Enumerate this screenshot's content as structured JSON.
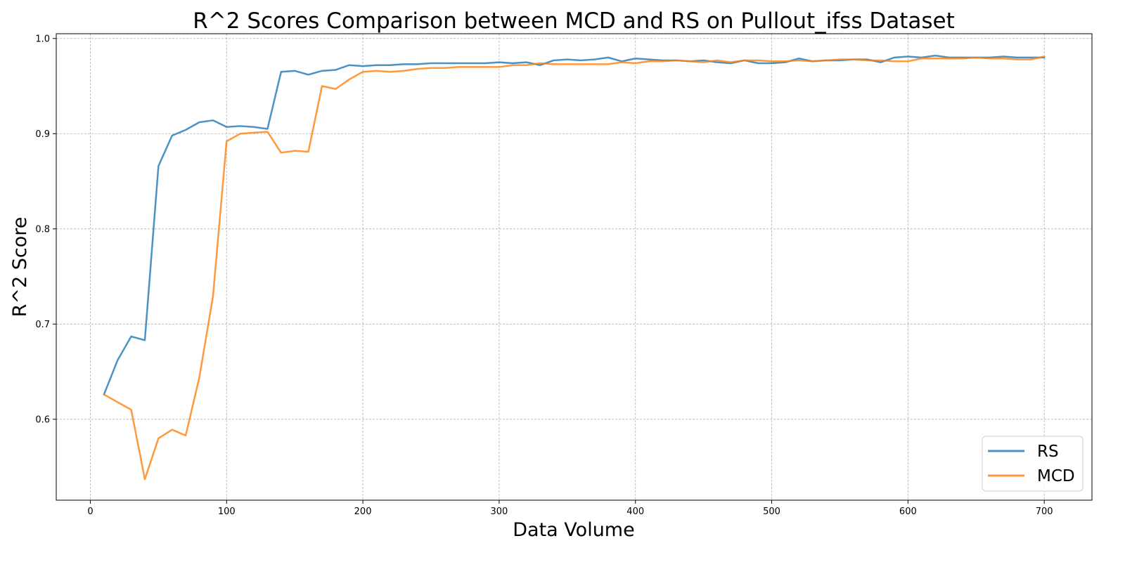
{
  "chart_data": {
    "type": "line",
    "title": "R^2 Scores Comparison between MCD and RS on Pullout_ifss Dataset",
    "xlabel": "Data Volume",
    "ylabel": "R^2 Score",
    "xlim": [
      -25,
      735
    ],
    "ylim": [
      0.515,
      1.005
    ],
    "xticks": [
      0,
      100,
      200,
      300,
      400,
      500,
      600,
      700
    ],
    "yticks": [
      0.6,
      0.7,
      0.8,
      0.9,
      1.0
    ],
    "ytick_labels": [
      "0.6",
      "0.7",
      "0.8",
      "0.9",
      "1.0"
    ],
    "grid": true,
    "legend_position": "bottom-right",
    "x": [
      10,
      20,
      30,
      40,
      50,
      60,
      70,
      80,
      90,
      100,
      110,
      120,
      130,
      140,
      150,
      160,
      170,
      180,
      190,
      200,
      210,
      220,
      230,
      240,
      250,
      260,
      270,
      280,
      290,
      300,
      310,
      320,
      330,
      340,
      350,
      360,
      370,
      380,
      390,
      400,
      410,
      420,
      430,
      440,
      450,
      460,
      470,
      480,
      490,
      500,
      510,
      520,
      530,
      540,
      550,
      560,
      570,
      580,
      590,
      600,
      610,
      620,
      630,
      640,
      650,
      660,
      670,
      680,
      690,
      700
    ],
    "series": [
      {
        "name": "RS",
        "color": "#1f77b4",
        "values": [
          0.626,
          0.662,
          0.687,
          0.683,
          0.866,
          0.898,
          0.904,
          0.912,
          0.914,
          0.907,
          0.908,
          0.907,
          0.905,
          0.965,
          0.966,
          0.962,
          0.966,
          0.967,
          0.972,
          0.971,
          0.972,
          0.972,
          0.973,
          0.973,
          0.974,
          0.974,
          0.974,
          0.974,
          0.974,
          0.975,
          0.974,
          0.975,
          0.972,
          0.977,
          0.978,
          0.977,
          0.978,
          0.98,
          0.976,
          0.979,
          0.978,
          0.977,
          0.977,
          0.976,
          0.977,
          0.975,
          0.974,
          0.977,
          0.974,
          0.974,
          0.975,
          0.979,
          0.976,
          0.977,
          0.977,
          0.978,
          0.978,
          0.975,
          0.98,
          0.981,
          0.98,
          0.982,
          0.98,
          0.98,
          0.98,
          0.98,
          0.981,
          0.98,
          0.98,
          0.98
        ]
      },
      {
        "name": "MCD",
        "color": "#ff7f0e",
        "values": [
          0.626,
          0.618,
          0.61,
          0.537,
          0.58,
          0.589,
          0.583,
          0.644,
          0.729,
          0.892,
          0.9,
          0.901,
          0.902,
          0.88,
          0.882,
          0.881,
          0.95,
          0.947,
          0.957,
          0.965,
          0.966,
          0.965,
          0.966,
          0.968,
          0.969,
          0.969,
          0.97,
          0.97,
          0.97,
          0.97,
          0.972,
          0.972,
          0.974,
          0.973,
          0.973,
          0.973,
          0.973,
          0.973,
          0.975,
          0.974,
          0.976,
          0.976,
          0.977,
          0.976,
          0.975,
          0.977,
          0.975,
          0.977,
          0.977,
          0.976,
          0.976,
          0.977,
          0.976,
          0.977,
          0.978,
          0.978,
          0.977,
          0.977,
          0.976,
          0.976,
          0.979,
          0.979,
          0.979,
          0.979,
          0.98,
          0.979,
          0.979,
          0.978,
          0.978,
          0.981
        ]
      }
    ]
  }
}
